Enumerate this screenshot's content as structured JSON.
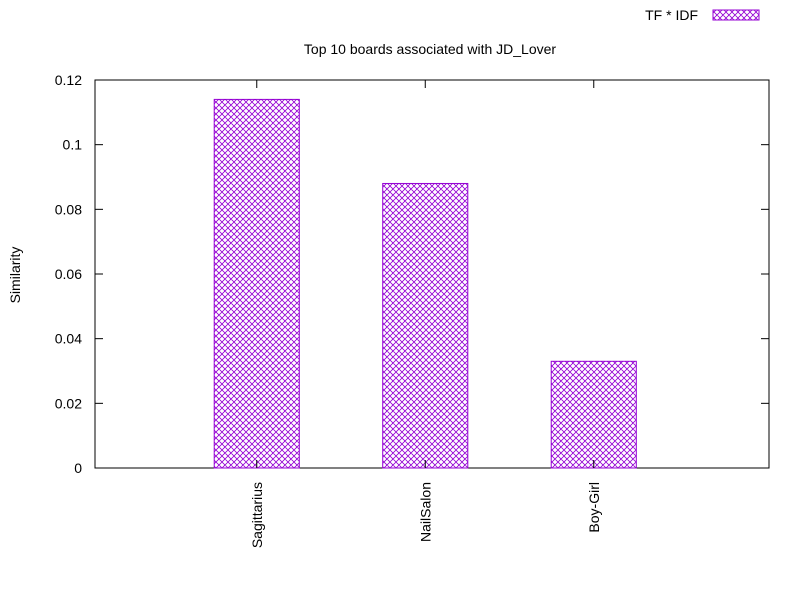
{
  "chart_data": {
    "type": "bar",
    "title": "Top 10 boards associated with JD_Lover",
    "xlabel": "",
    "ylabel": "Similarity",
    "categories": [
      "Sagittarius",
      "NailSalon",
      "Boy-Girl"
    ],
    "series": [
      {
        "name": "TF * IDF",
        "values": [
          0.114,
          0.088,
          0.033
        ]
      }
    ],
    "ylim": [
      0,
      0.12
    ],
    "yticks": [
      "0",
      "0.02",
      "0.04",
      "0.06",
      "0.08",
      "0.1",
      "0.12"
    ],
    "xtick_rotation": "vertical",
    "grid": false,
    "legend_position": "top-right",
    "bar_color": "#9400d3",
    "bar_pattern": "crosshatch",
    "axis_color": "#000000"
  }
}
